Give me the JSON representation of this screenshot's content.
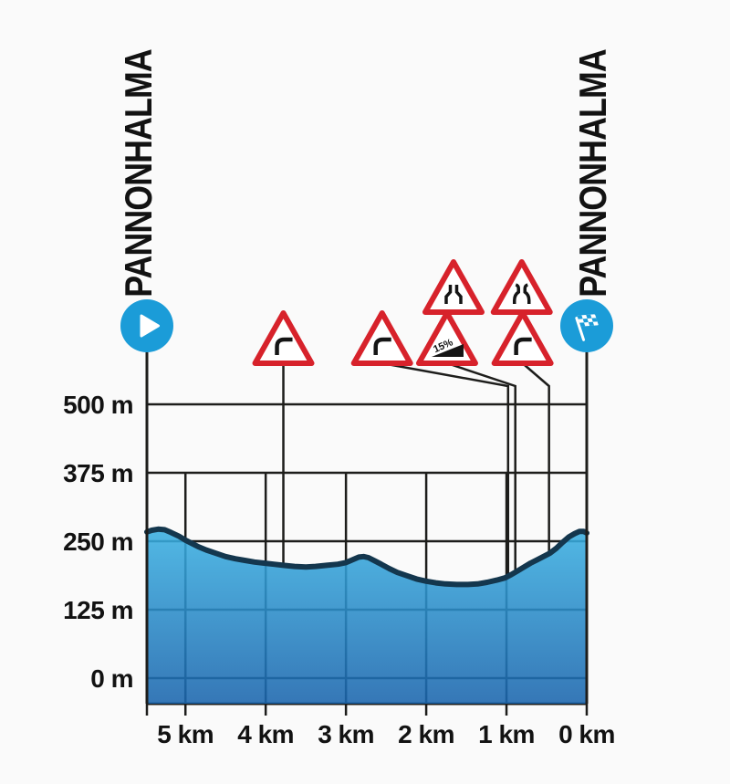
{
  "route": {
    "start": "PANNONHALMA",
    "finish": "PANNONHALMA"
  },
  "colors": {
    "background": "#fafafa",
    "axis_black": "#1d1d1b",
    "marker_blue": "#1b9cd8",
    "sign_red": "#d7222b",
    "sign_symbol_black": "#151515",
    "profile_line": "#14374e",
    "fill_top": "#3ab0e2",
    "fill_bottom": "#1a65ad"
  },
  "chart_data": {
    "type": "area",
    "title": "Stage elevation profile Pannonhalma - Pannonhalma",
    "x_axis": {
      "unit": "km",
      "direction": "distance_to_finish",
      "tick_values_km": [
        5,
        4,
        3,
        2,
        1,
        0
      ],
      "tick_labels": [
        "5 km",
        "4 km",
        "3 km",
        "2 km",
        "1 km",
        "0 km"
      ],
      "route_length_km": 5.48
    },
    "y_axis": {
      "unit": "m",
      "tick_values_m": [
        500,
        375,
        250,
        125,
        0
      ],
      "tick_labels": [
        "500 m",
        "375 m",
        "250 m",
        "125 m",
        "0 m"
      ]
    },
    "profile_points_km_m": [
      [
        5.48,
        267
      ],
      [
        5.42,
        270
      ],
      [
        5.34,
        272
      ],
      [
        5.26,
        271
      ],
      [
        5.18,
        266
      ],
      [
        5.08,
        259
      ],
      [
        5.0,
        252
      ],
      [
        4.92,
        246
      ],
      [
        4.84,
        240
      ],
      [
        4.74,
        234
      ],
      [
        4.62,
        228
      ],
      [
        4.5,
        222
      ],
      [
        4.38,
        218
      ],
      [
        4.26,
        215
      ],
      [
        4.14,
        212
      ],
      [
        4.02,
        210
      ],
      [
        3.9,
        208
      ],
      [
        3.78,
        206
      ],
      [
        3.64,
        204
      ],
      [
        3.5,
        203
      ],
      [
        3.38,
        204
      ],
      [
        3.24,
        206
      ],
      [
        3.1,
        208
      ],
      [
        3.0,
        211
      ],
      [
        2.92,
        216
      ],
      [
        2.84,
        221
      ],
      [
        2.78,
        222
      ],
      [
        2.72,
        220
      ],
      [
        2.64,
        214
      ],
      [
        2.56,
        208
      ],
      [
        2.46,
        200
      ],
      [
        2.36,
        193
      ],
      [
        2.24,
        187
      ],
      [
        2.12,
        181
      ],
      [
        2.0,
        177
      ],
      [
        1.88,
        174
      ],
      [
        1.76,
        172
      ],
      [
        1.62,
        171
      ],
      [
        1.48,
        171
      ],
      [
        1.36,
        172
      ],
      [
        1.24,
        175
      ],
      [
        1.12,
        179
      ],
      [
        1.02,
        183
      ],
      [
        0.94,
        189
      ],
      [
        0.86,
        196
      ],
      [
        0.78,
        203
      ],
      [
        0.7,
        210
      ],
      [
        0.62,
        216
      ],
      [
        0.54,
        222
      ],
      [
        0.46,
        228
      ],
      [
        0.38,
        237
      ],
      [
        0.3,
        248
      ],
      [
        0.22,
        258
      ],
      [
        0.15,
        264
      ],
      [
        0.09,
        268
      ],
      [
        0.04,
        268
      ],
      [
        0.0,
        265
      ]
    ],
    "markers": [
      {
        "type": "start",
        "icon": "play-icon",
        "km": 5.48
      },
      {
        "type": "finish",
        "icon": "checkered-flag-icon",
        "km": 0
      }
    ],
    "signs": [
      {
        "symbol": "curve-right",
        "row": "lower",
        "km": 3.78,
        "points_to_km": 3.78
      },
      {
        "symbol": "curve-right",
        "row": "lower",
        "km": 2.55,
        "points_to_km": 0.98
      },
      {
        "symbol": "road-narrows",
        "row": "upper",
        "km": 1.66
      },
      {
        "symbol": "road-widens",
        "row": "upper",
        "km": 0.81
      },
      {
        "symbol": "steep-climb",
        "row": "lower",
        "km": 1.74,
        "points_to_km": 0.89,
        "gradient_label": "15%"
      },
      {
        "symbol": "curve-right",
        "row": "lower",
        "km": 0.8,
        "points_to_km": 0.47
      }
    ]
  }
}
